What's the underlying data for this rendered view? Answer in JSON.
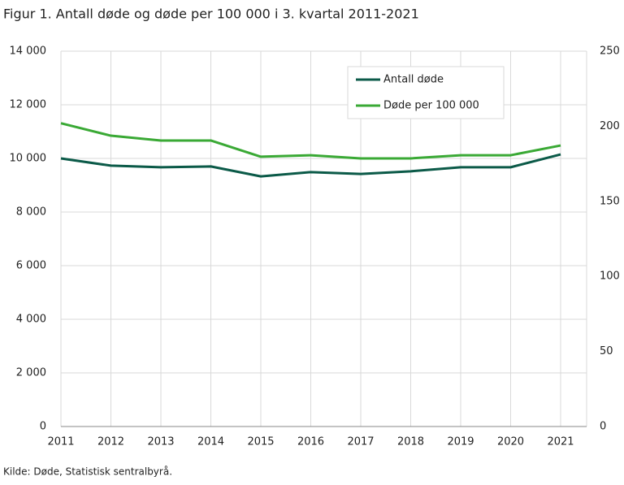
{
  "chart_data": {
    "type": "line",
    "title": "Figur 1. Antall døde og døde per 100 000 i 3. kvartal 2011-2021",
    "source": "Kilde: Døde, Statistisk sentralbyrå.",
    "categories": [
      "2011",
      "2012",
      "2013",
      "2014",
      "2015",
      "2016",
      "2017",
      "2018",
      "2019",
      "2020",
      "2021"
    ],
    "series": [
      {
        "name": "Antall døde",
        "color": "#0b5a48",
        "values": [
          10000,
          9730,
          9670,
          9700,
          9330,
          9490,
          9420,
          9520,
          9670,
          9670,
          10150
        ]
      },
      {
        "name": "Døde per 100 000",
        "color": "#3aa935",
        "axis": "y2",
        "values": [
          202,
          193.7,
          190.5,
          190.5,
          179.7,
          180.7,
          178.6,
          178.6,
          180.7,
          180.7,
          187.2
        ]
      }
    ],
    "ylim": [
      0,
      14000
    ],
    "yticks": [
      0,
      {
        "value": 2000,
        "label": "2 000"
      },
      {
        "value": 4000,
        "label": "4 000"
      },
      {
        "value": 6000,
        "label": "6 000"
      },
      {
        "value": 8000,
        "label": "8 000"
      },
      {
        "value": 10000,
        "label": "10 000"
      },
      {
        "value": 12000,
        "label": "12 000"
      },
      {
        "value": 14000,
        "label": "14 000"
      }
    ],
    "y2lim": [
      0,
      250
    ],
    "y2ticks": [
      0,
      50,
      100,
      150,
      200,
      250
    ],
    "grid": true,
    "legend": "upper right"
  }
}
